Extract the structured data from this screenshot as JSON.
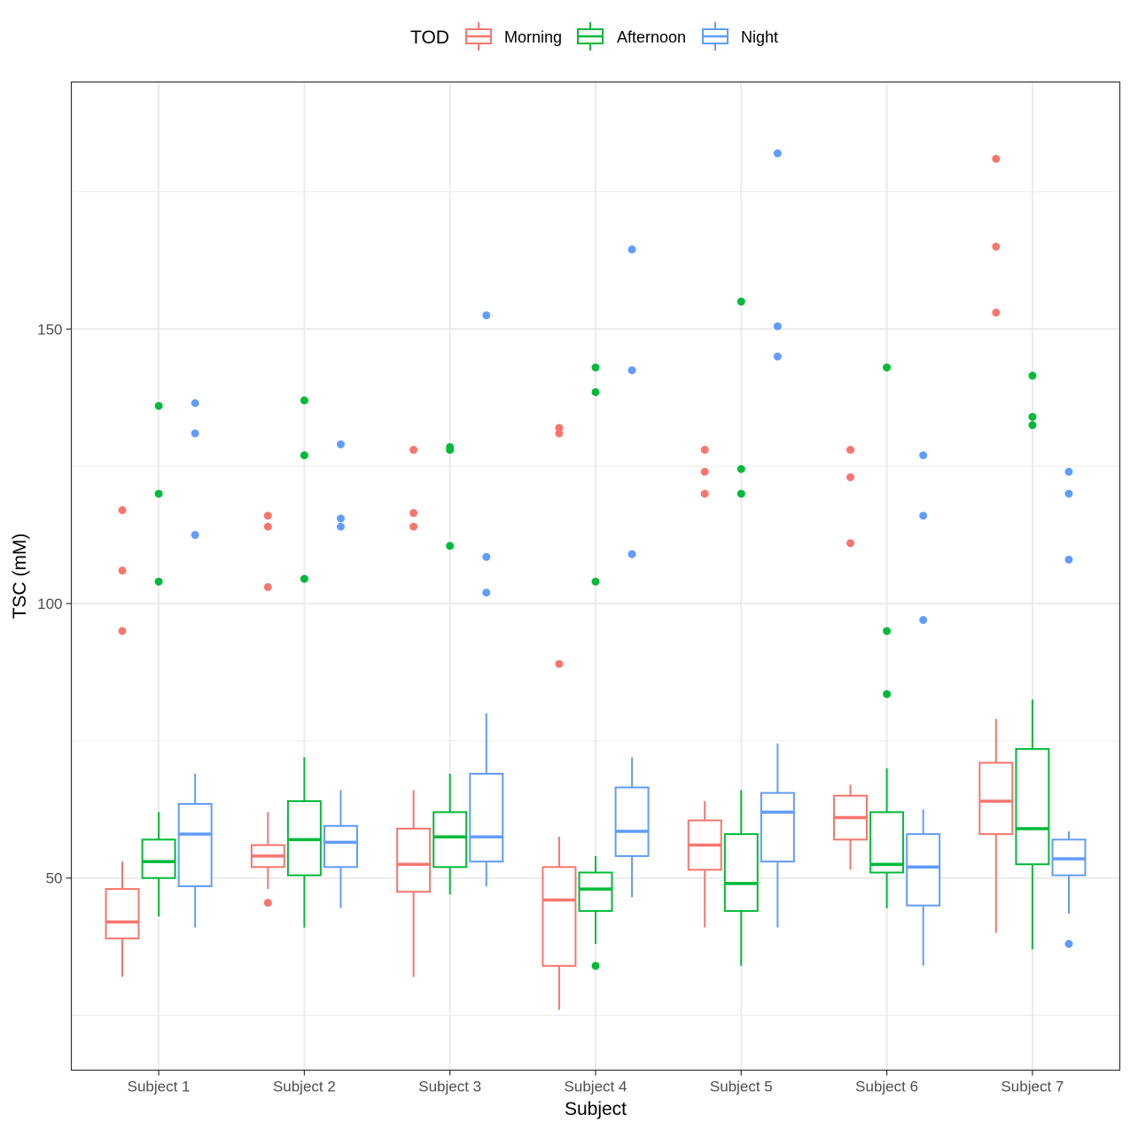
{
  "chart_data": {
    "type": "boxplot",
    "xlabel": "Subject",
    "ylabel": "TSC (mM)",
    "ylim": [
      15,
      195
    ],
    "yticks": [
      50,
      100,
      150
    ],
    "grid": true,
    "legend": {
      "title": "TOD",
      "position": "top"
    },
    "categories": [
      "Subject 1",
      "Subject 2",
      "Subject 3",
      "Subject 4",
      "Subject 5",
      "Subject 6",
      "Subject 7"
    ],
    "series": [
      {
        "name": "Morning",
        "color": "#F8766D",
        "boxes": [
          {
            "whisker_low": 32,
            "q1": 39,
            "median": 42,
            "q3": 48,
            "whisker_high": 53,
            "outliers": [
              95,
              106,
              117
            ]
          },
          {
            "whisker_low": 48,
            "q1": 52,
            "median": 54,
            "q3": 56,
            "whisker_high": 62,
            "outliers": [
              45.5,
              103,
              114,
              116
            ]
          },
          {
            "whisker_low": 32,
            "q1": 47.5,
            "median": 52.5,
            "q3": 59,
            "whisker_high": 66,
            "outliers": [
              114,
              116.5,
              128
            ]
          },
          {
            "whisker_low": 26,
            "q1": 34,
            "median": 46,
            "q3": 52,
            "whisker_high": 57.5,
            "outliers": [
              89,
              131,
              132
            ]
          },
          {
            "whisker_low": 41,
            "q1": 51.5,
            "median": 56,
            "q3": 60.5,
            "whisker_high": 64,
            "outliers": [
              120,
              124,
              128
            ]
          },
          {
            "whisker_low": 51.5,
            "q1": 57,
            "median": 61,
            "q3": 65,
            "whisker_high": 67,
            "outliers": [
              111,
              123,
              128
            ]
          },
          {
            "whisker_low": 40,
            "q1": 58,
            "median": 64,
            "q3": 71,
            "whisker_high": 79,
            "outliers": [
              153,
              165,
              181
            ]
          }
        ]
      },
      {
        "name": "Afternoon",
        "color": "#00BA38",
        "boxes": [
          {
            "whisker_low": 43,
            "q1": 50,
            "median": 53,
            "q3": 57,
            "whisker_high": 62,
            "outliers": [
              104,
              120,
              136
            ]
          },
          {
            "whisker_low": 41,
            "q1": 50.5,
            "median": 57,
            "q3": 64,
            "whisker_high": 72,
            "outliers": [
              104.5,
              127,
              137
            ]
          },
          {
            "whisker_low": 47,
            "q1": 52,
            "median": 57.5,
            "q3": 62,
            "whisker_high": 69,
            "outliers": [
              110.5,
              128,
              128.5
            ]
          },
          {
            "whisker_low": 38,
            "q1": 44,
            "median": 48,
            "q3": 51,
            "whisker_high": 54,
            "outliers": [
              34,
              104,
              138.5,
              143
            ]
          },
          {
            "whisker_low": 34,
            "q1": 44,
            "median": 49,
            "q3": 58,
            "whisker_high": 66,
            "outliers": [
              120,
              124.5,
              155
            ]
          },
          {
            "whisker_low": 44.5,
            "q1": 51,
            "median": 52.5,
            "q3": 62,
            "whisker_high": 70,
            "outliers": [
              83.5,
              95,
              143
            ]
          },
          {
            "whisker_low": 37,
            "q1": 52.5,
            "median": 59,
            "q3": 73.5,
            "whisker_high": 82.5,
            "outliers": [
              132.5,
              134,
              141.5
            ]
          }
        ]
      },
      {
        "name": "Night",
        "color": "#619CFF",
        "boxes": [
          {
            "whisker_low": 41,
            "q1": 48.5,
            "median": 58,
            "q3": 63.5,
            "whisker_high": 69,
            "outliers": [
              112.5,
              131,
              136.5
            ]
          },
          {
            "whisker_low": 44.5,
            "q1": 52,
            "median": 56.5,
            "q3": 59.5,
            "whisker_high": 66,
            "outliers": [
              114,
              115.5,
              129
            ]
          },
          {
            "whisker_low": 48.5,
            "q1": 53,
            "median": 57.5,
            "q3": 69,
            "whisker_high": 80,
            "outliers": [
              102,
              108.5,
              152.5
            ]
          },
          {
            "whisker_low": 46.5,
            "q1": 54,
            "median": 58.5,
            "q3": 66.5,
            "whisker_high": 72,
            "outliers": [
              109,
              142.5,
              164.5
            ]
          },
          {
            "whisker_low": 41,
            "q1": 53,
            "median": 62,
            "q3": 65.5,
            "whisker_high": 74.5,
            "outliers": [
              145,
              150.5,
              182
            ]
          },
          {
            "whisker_low": 34,
            "q1": 45,
            "median": 52,
            "q3": 58,
            "whisker_high": 62.5,
            "outliers": [
              97,
              116,
              127
            ]
          },
          {
            "whisker_low": 43.5,
            "q1": 50.5,
            "median": 53.5,
            "q3": 57,
            "whisker_high": 58.5,
            "outliers": [
              38,
              108,
              120,
              124
            ]
          }
        ]
      }
    ]
  }
}
